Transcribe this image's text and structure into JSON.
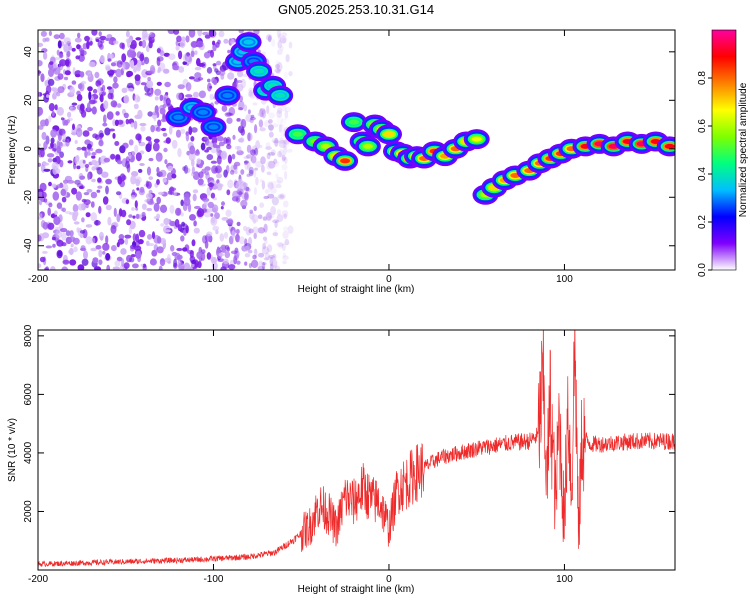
{
  "title": "GN05.2025.253.10.31.G14",
  "chart_data": [
    {
      "type": "heatmap",
      "xlabel": "Height of straight line (km)",
      "ylabel": "Frequency (Hz)",
      "xlim": [
        -200,
        163
      ],
      "ylim": [
        -50,
        49
      ],
      "xticks": [
        -200,
        -100,
        0,
        100
      ],
      "xtick_labels": [
        "-200",
        "-100",
        "0",
        "100"
      ],
      "yticks": [
        -40,
        -20,
        0,
        20,
        40
      ],
      "ytick_labels": [
        "-40",
        "-20",
        "0",
        "20",
        "40"
      ],
      "colorbar": {
        "label": "Normalized spectral amplitude",
        "range": [
          0,
          1
        ],
        "ticks": [
          0.0,
          0.2,
          0.4,
          0.6,
          0.8
        ],
        "tick_labels": [
          "0.0",
          "0.2",
          "0.4",
          "0.6",
          "0.8"
        ],
        "colors": [
          "#ffffff",
          "#7f00ff",
          "#0000ff",
          "#00bfff",
          "#00ff80",
          "#7fff00",
          "#ffff00",
          "#ff8000",
          "#ff0000",
          "#ff00a0"
        ]
      },
      "noise_region": {
        "x": [
          -200,
          -60
        ],
        "y": [
          -50,
          49
        ],
        "amplitude": 0.1
      },
      "ridge": {
        "x": [
          -120,
          -112,
          -106,
          -100,
          -92,
          -86,
          -83,
          -80,
          -77,
          -74,
          -70,
          -66,
          -62,
          -52,
          -42,
          -36,
          -30,
          -25,
          -20,
          -15,
          -12,
          -8,
          -4,
          0,
          4,
          8,
          12,
          16,
          20,
          26,
          32,
          38,
          44,
          50,
          55,
          60,
          66,
          72,
          80,
          86,
          92,
          98,
          104,
          112,
          120,
          128,
          136,
          144,
          152,
          160
        ],
        "y": [
          13,
          17,
          15,
          9,
          22,
          36,
          40,
          44,
          36,
          32,
          24,
          26,
          22,
          6,
          3,
          1,
          -3,
          -5,
          11,
          3,
          1,
          10,
          8,
          6,
          -1,
          -2,
          -4,
          -3,
          -4,
          -1,
          -3,
          0,
          3,
          4,
          -19,
          -16,
          -13,
          -11,
          -9,
          -6,
          -4,
          -2,
          0,
          1,
          2,
          1,
          3,
          2,
          3,
          1
        ],
        "amplitude": [
          0.3,
          0.35,
          0.3,
          0.3,
          0.3,
          0.35,
          0.35,
          0.35,
          0.3,
          0.4,
          0.4,
          0.4,
          0.4,
          0.5,
          0.55,
          0.6,
          0.7,
          0.85,
          0.5,
          0.55,
          0.6,
          0.6,
          0.65,
          0.7,
          0.75,
          0.8,
          0.85,
          0.75,
          0.8,
          0.85,
          0.75,
          0.8,
          0.7,
          0.65,
          0.6,
          0.7,
          0.75,
          0.8,
          0.8,
          0.8,
          0.85,
          0.85,
          0.8,
          0.9,
          0.95,
          0.95,
          0.9,
          0.95,
          0.9,
          0.9
        ]
      }
    },
    {
      "type": "line",
      "xlabel": "Height of straight line (km)",
      "ylabel": "SNR (10 * v/v)",
      "xlim": [
        -200,
        163
      ],
      "ylim": [
        0,
        8200
      ],
      "xticks": [
        -200,
        -100,
        0,
        100
      ],
      "xtick_labels": [
        "-200",
        "-100",
        "0",
        "100"
      ],
      "yticks": [
        2000,
        4000,
        6000,
        8000
      ],
      "ytick_labels": [
        "2000",
        "4000",
        "6000",
        "8000"
      ],
      "color": "#ee2a2a",
      "series": [
        {
          "x": [
            -200,
            -170,
            -140,
            -110,
            -80,
            -65,
            -55,
            -45,
            -40,
            -35,
            -30,
            -25,
            -20,
            -15,
            -10,
            -5,
            0,
            5,
            10,
            15,
            20,
            25,
            30,
            40,
            50,
            60,
            70,
            80,
            85,
            88,
            90,
            92,
            95,
            97,
            100,
            102,
            104,
            106,
            108,
            110,
            115,
            120,
            130,
            140,
            150,
            163
          ],
          "y": [
            200,
            250,
            300,
            350,
            450,
            600,
            1000,
            1500,
            2200,
            2000,
            1400,
            2500,
            2300,
            2800,
            2400,
            2300,
            1400,
            2800,
            3000,
            3300,
            3500,
            3700,
            3850,
            4000,
            4150,
            4250,
            4350,
            4400,
            4600,
            6500,
            3000,
            5800,
            2200,
            5200,
            1500,
            6000,
            2500,
            8000,
            1000,
            4600,
            4300,
            4300,
            4350,
            4400,
            4400,
            4400
          ]
        }
      ]
    }
  ]
}
